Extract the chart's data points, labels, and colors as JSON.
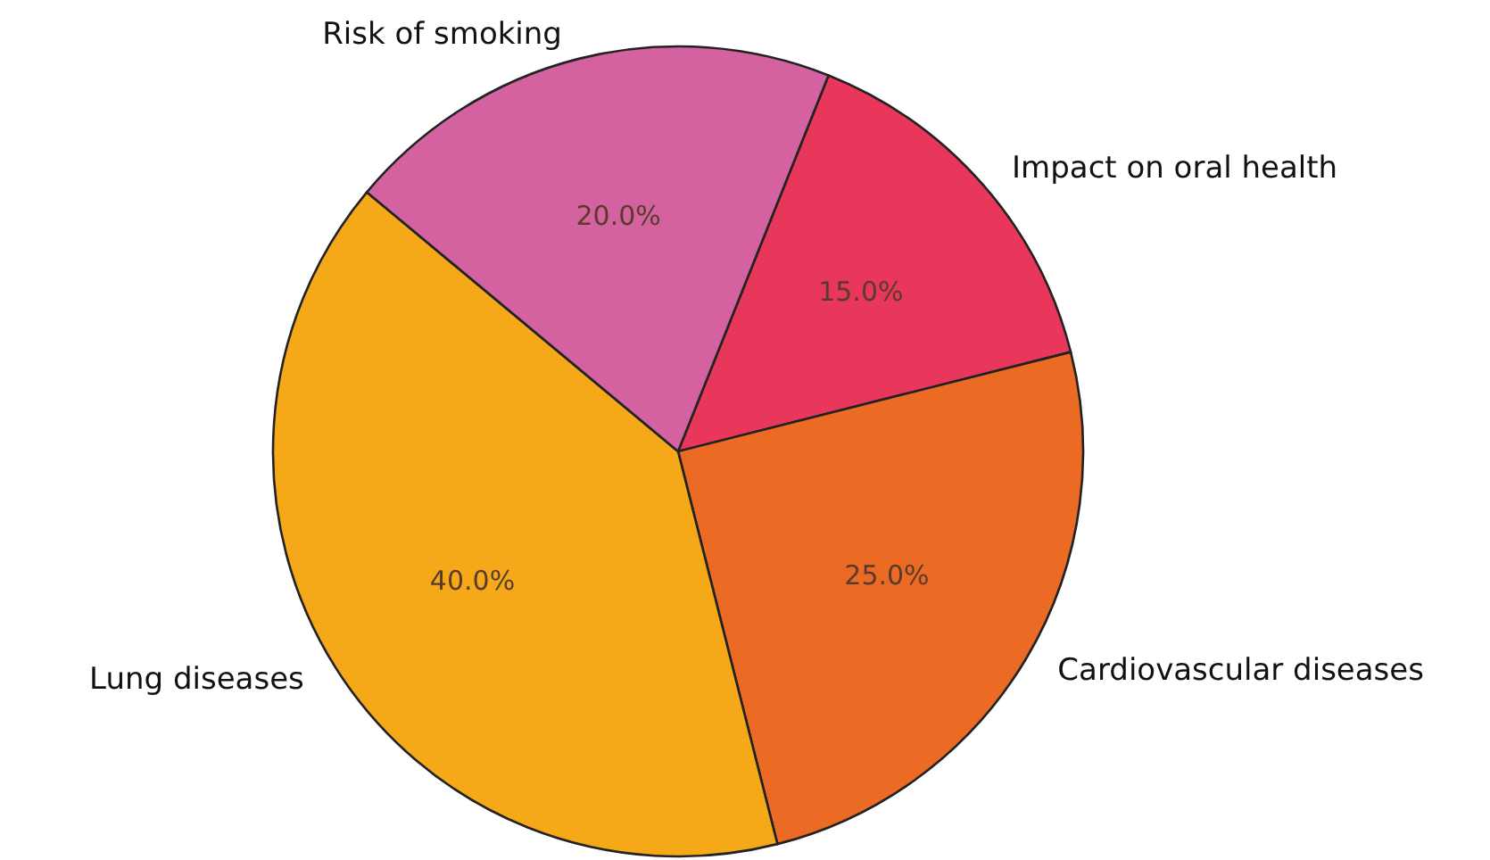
{
  "chart_data": {
    "type": "pie",
    "categories": [
      "Impact on oral health",
      "Cardiovascular diseases",
      "Lung diseases",
      "Risk of smoking"
    ],
    "values": [
      15,
      25,
      40,
      20
    ],
    "colors": [
      "#e8375a",
      "#eb6a24",
      "#f5a918",
      "#d462a0"
    ],
    "value_labels": [
      "15.0%",
      "25.0%",
      "40.0%",
      "20.0%"
    ]
  }
}
